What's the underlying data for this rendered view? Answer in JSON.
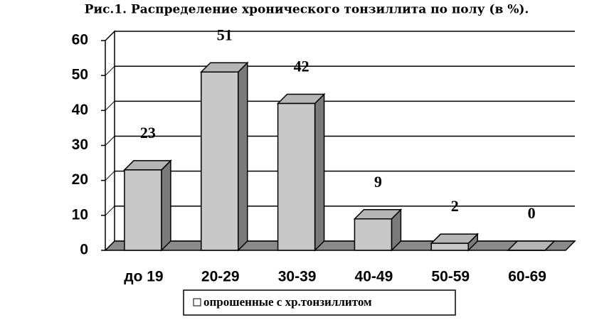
{
  "chart_data": {
    "type": "bar3d",
    "title": "Рис.1. Распределение хронического тонзиллита по полу (в %).",
    "categories": [
      "до 19",
      "20-29",
      "30-39",
      "40-49",
      "50-59",
      "60-69"
    ],
    "series": [
      {
        "name": "опрошенные с хр.тонзиллитом",
        "color": "#c8c8c8",
        "values": [
          23,
          51,
          42,
          9,
          2,
          0
        ]
      }
    ],
    "ylim": [
      0,
      60
    ],
    "yticks": [
      0,
      10,
      20,
      30,
      40,
      50,
      60
    ],
    "grid": true
  }
}
